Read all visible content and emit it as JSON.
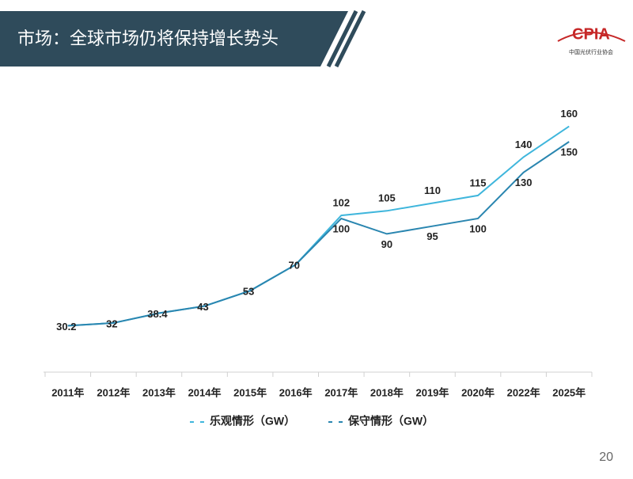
{
  "header": {
    "title": "市场：全球市场仍将保持增长势头"
  },
  "logo": {
    "name": "CPIA",
    "org": "中国光伏行业协会"
  },
  "page_number": "20",
  "chart_data": {
    "type": "line",
    "categories": [
      "2011年",
      "2012年",
      "2013年",
      "2014年",
      "2015年",
      "2016年",
      "2017年",
      "2018年",
      "2019年",
      "2020年",
      "2022年",
      "2025年"
    ],
    "series": [
      {
        "name": "乐观情形（GW）",
        "color": "#3fb6dc",
        "values": [
          30.2,
          32,
          38.4,
          43,
          53,
          70,
          102,
          105,
          110,
          115,
          140,
          160
        ]
      },
      {
        "name": "保守情形（GW）",
        "color": "#2a86b0",
        "values": [
          30.2,
          32,
          38.4,
          43,
          53,
          70,
          100,
          90,
          95,
          100,
          130,
          150
        ]
      }
    ]
  }
}
